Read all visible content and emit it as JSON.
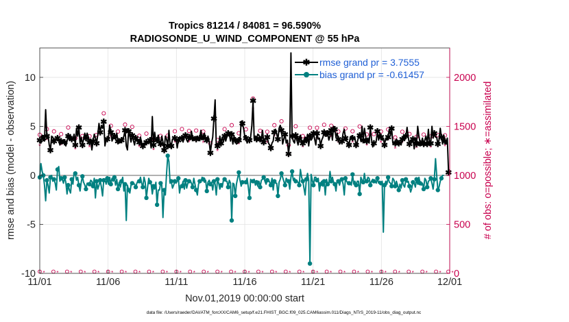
{
  "chart_data": {
    "type": "line",
    "title_line1": "Tropics 81214 / 84081 = 96.590%",
    "title_line2": "RADIOSONDE_U_WIND_COMPONENT @ 55 hPa",
    "xlabel": "Nov.01,2019 00:00:00 start",
    "ylabel_left": "rmse and bias (model - observation)",
    "ylabel_right": "# of obs: o=possible; ∗=assimilated",
    "footnote": "data file: /Users/raeder/DAI/ATM_forcXX/CAM6_setup/f.e21.FHIST_BGC.f09_025.CAM6assim.011/Diags_NTrS_2019-11/obs_diag_output.nc",
    "xlim": [
      0,
      30
    ],
    "ylim_left": [
      -10,
      13
    ],
    "ylim_right": [
      0,
      2300
    ],
    "x_tick_values": [
      0,
      5,
      10,
      15,
      20,
      25,
      30
    ],
    "x_tick_labels": [
      "11/01",
      "11/06",
      "11/11",
      "11/16",
      "11/21",
      "11/26",
      "12/01"
    ],
    "y_left_ticks": [
      -10,
      -5,
      0,
      5,
      10
    ],
    "y_right_ticks": [
      0,
      500,
      1000,
      1500,
      2000
    ],
    "legend": [
      {
        "name": "rmse grand pr = 3.7555",
        "color": "#000000",
        "marker": "star"
      },
      {
        "name": "bias grand pr = -0.61457",
        "color": "#008080",
        "marker": "circle"
      }
    ],
    "colors": {
      "rmse": "#000000",
      "bias": "#008080",
      "obs": "#c8004e",
      "legend_text": "#1f5fd6",
      "zero_line": "#b0b0b0",
      "grid": "#e3e3e3"
    },
    "rmse": [
      3.6,
      3.3,
      4.1,
      3.8,
      3.5,
      6.7,
      4.0,
      4.1,
      3.1,
      2.6,
      4.0,
      3.9,
      3.5,
      3.7,
      3.8,
      3.8,
      3.6,
      3.1,
      3.5,
      3.3,
      3.6,
      3.4,
      3.0,
      3.5,
      4.0,
      3.6,
      4.0,
      3.7,
      3.7,
      4.2,
      3.1,
      4.8,
      4.0,
      4.9,
      3.3,
      3.9,
      3.1,
      3.7,
      4.3,
      3.8,
      4.3,
      3.9,
      3.4,
      3.7,
      2.6,
      3.5,
      4.2,
      3.8,
      3.3,
      4.2,
      5.3,
      4.4,
      5.1,
      4.8,
      5.5,
      3.0,
      3.7,
      3.7,
      3.9,
      5.1,
      4.4,
      3.5,
      3.8,
      4.0,
      3.7,
      4.3,
      3.5,
      3.3,
      3.4,
      3.6,
      3.7,
      4.0,
      4.6,
      3.0,
      2.6,
      4.5,
      4.0,
      3.4,
      4.1,
      3.6,
      3.1,
      3.8,
      3.5,
      3.6,
      3.4,
      3.9,
      3.3,
      3.0,
      3.3,
      3.1,
      3.4,
      3.3,
      3.4,
      3.6,
      2.8,
      6.0,
      3.1,
      4.4,
      3.5,
      3.6,
      4.1,
      3.5,
      3.2,
      4.0,
      3.4,
      2.6,
      4.0,
      3.7,
      3.0,
      4.6,
      3.1,
      3.0,
      3.7,
      3.8,
      3.8,
      3.7,
      2.8,
      3.6,
      3.9,
      3.7,
      3.8,
      3.4,
      4.1,
      4.1,
      3.6,
      3.4,
      3.9,
      3.7,
      4.5,
      3.8,
      3.6,
      3.7,
      3.7,
      4.0,
      3.8,
      3.8,
      4.6,
      3.7,
      3.9,
      4.3,
      3.7,
      3.6,
      4.0,
      3.4,
      2.3,
      3.3,
      3.9,
      5.8,
      7.7,
      3.0,
      3.0,
      3.1,
      4.0,
      3.3,
      3.9,
      3.4,
      4.0,
      3.5,
      4.0,
      4.3,
      4.2,
      3.5,
      4.2,
      3.2,
      4.0,
      3.6,
      3.2,
      3.3,
      3.6,
      3.5,
      5.5,
      5.3,
      4.8,
      4.0,
      3.8,
      3.3,
      3.6,
      3.6,
      3.9,
      5.1,
      7.6,
      3.7,
      4.0,
      3.7,
      4.2,
      4.1,
      3.7,
      3.7,
      4.6,
      3.4,
      3.7,
      3.7,
      3.9,
      3.3,
      3.1,
      2.8,
      3.3,
      3.5,
      4.4,
      4.7,
      4.2,
      3.7,
      4.8,
      5.1,
      4.6,
      3.2,
      3.7,
      4.2,
      3.3,
      3.6,
      2.2,
      3.4,
      12.5,
      4.0,
      3.5,
      3.3,
      4.1,
      3.6,
      3.1,
      3.7,
      4.1,
      3.5,
      3.3,
      3.6,
      3.9,
      3.6,
      4.2,
      3.0,
      4.0,
      3.6,
      3.8,
      4.3,
      3.7,
      3.1,
      4.3,
      3.7,
      3.8,
      3.0,
      3.6,
      3.9,
      4.4,
      4.0,
      4.0,
      4.3,
      3.6,
      4.0,
      4.6,
      3.6,
      5.0,
      4.7,
      3.9,
      4.3,
      3.7,
      3.2,
      3.4,
      3.5,
      4.3,
      4.7,
      3.8,
      3.5,
      3.4,
      3.1,
      3.8,
      4.0,
      3.8,
      3.7,
      3.8,
      3.1,
      3.4,
      3.9,
      4.1,
      3.5,
      5.0,
      3.6,
      4.8,
      4.0,
      3.5,
      3.8,
      3.3,
      4.9,
      3.7,
      2.9,
      3.3,
      3.3,
      3.5,
      4.5,
      3.6,
      4.3,
      3.9,
      3.6,
      3.8,
      3.1,
      3.8,
      3.6,
      3.9,
      4.7,
      4.1,
      4.8,
      3.3,
      3.4,
      3.3,
      3.7,
      3.5,
      3.3,
      3.4,
      3.1,
      3.7,
      4.0,
      3.6,
      4.0,
      4.9,
      3.9,
      3.2,
      3.6,
      3.4,
      3.7,
      2.7,
      3.8,
      3.2,
      5.0,
      4.0,
      3.3,
      3.3,
      3.8,
      3.2,
      3.6,
      4.0,
      3.2,
      4.7,
      3.3,
      3.3,
      5.0,
      3.8,
      4.3,
      3.9,
      3.9,
      3.2,
      3.6,
      4.8,
      3.9,
      3.2,
      4.1,
      3.5,
      3.2,
      3.8,
      0.3,
      0.2
    ],
    "bias": [
      -0.2,
      1.2,
      0.4,
      0.0,
      -1.0,
      -2.6,
      -0.5,
      -1.0,
      -1.8,
      -0.2,
      0.0,
      -0.6,
      -0.4,
      -0.8,
      -1.5,
      0.6,
      0.9,
      -0.6,
      -0.3,
      -0.4,
      -0.8,
      -0.2,
      -0.7,
      -1.9,
      -1.0,
      -1.5,
      -1.8,
      -0.4,
      -0.9,
      0.3,
      0.2,
      -0.5,
      -0.2,
      -1.0,
      -1.6,
      -0.7,
      -0.1,
      -0.7,
      -1.0,
      -1.4,
      -0.8,
      -0.8,
      -0.9,
      -0.5,
      -0.6,
      -1.1,
      -0.3,
      -2.3,
      -0.6,
      -1.4,
      -1.0,
      -0.5,
      -1.2,
      -2.1,
      -0.5,
      -0.4,
      -0.9,
      -0.3,
      -0.9,
      -0.2,
      -0.9,
      -0.3,
      -0.6,
      -0.2,
      -1.0,
      -0.4,
      -1.4,
      -0.7,
      -1.2,
      -0.6,
      -0.2,
      -1.6,
      -0.9,
      -4.6,
      -1.0,
      -1.5,
      -1.8,
      -1.0,
      -0.8,
      -0.8,
      -0.9,
      -1.2,
      -0.8,
      -0.5,
      -0.6,
      -0.2,
      -0.8,
      -1.2,
      -0.2,
      -0.7,
      -2.3,
      -1.2,
      -0.3,
      -0.7,
      -0.9,
      -1.9,
      -1.1,
      -1.4,
      -0.7,
      -3.0,
      -1.5,
      -1.5,
      -0.8,
      -1.0,
      -4.3,
      -1.5,
      -2.0,
      0.1,
      2.0,
      1.4,
      -0.8,
      -0.6,
      -1.3,
      -1.0,
      -0.6,
      -0.8,
      -0.6,
      -0.3,
      -1.8,
      -1.0,
      -1.1,
      -0.6,
      -1.4,
      -0.5,
      -1.3,
      -0.8,
      -0.6,
      -0.5,
      -0.8,
      -1.2,
      -0.3,
      -0.9,
      -1.5,
      -2.0,
      -0.9,
      -0.6,
      -0.7,
      -0.2,
      -0.4,
      -0.7,
      -0.5,
      -1.6,
      -0.7,
      -0.5,
      -0.9,
      -0.7,
      -1.5,
      -0.6,
      -0.9,
      -2.0,
      -0.4,
      -0.8,
      -1.4,
      -1.0,
      -1.2,
      -0.5,
      -0.4,
      -0.6,
      -0.6,
      -1.2,
      -0.5,
      -0.8,
      -4.6,
      -0.8,
      -0.9,
      -2.1,
      -0.9,
      -0.3,
      0.3,
      -0.5,
      -1.1,
      -0.7,
      -0.8,
      -0.6,
      -0.7,
      -0.3,
      -1.2,
      -2.3,
      -0.4,
      -0.7,
      -0.6,
      -0.4,
      -1.0,
      -0.7,
      -1.1,
      -0.6,
      -1.2,
      -0.5,
      -0.4,
      -0.2,
      -0.6,
      -0.9,
      -0.5,
      -0.4,
      -0.7,
      -1.0,
      -0.3,
      -1.5,
      -0.6,
      -0.8,
      -0.8,
      -2.1,
      -0.7,
      -0.4,
      0.2,
      -0.2,
      -0.6,
      -1.0,
      -0.3,
      -0.5,
      -0.6,
      -1.4,
      -0.2,
      0.4,
      -0.5,
      -0.3,
      -0.6,
      -0.6,
      -0.7,
      -1.0,
      0.6,
      -0.2,
      -0.6,
      -1.3,
      -2.0,
      -0.4,
      0.2,
      -0.5,
      -9.0,
      0.1,
      -0.5,
      -1.0,
      -0.2,
      -0.2,
      -0.5,
      -0.3,
      -1.6,
      -0.9,
      -0.6,
      -1.1,
      -0.6,
      -2.0,
      -0.4,
      -0.9,
      -0.8,
      0.4,
      -0.6,
      -0.2,
      -0.7,
      -0.9,
      -1.6,
      -0.5,
      -0.6,
      -1.0,
      -0.5,
      -0.4,
      -0.9,
      -2.0,
      -0.3,
      -0.6,
      -0.8,
      -0.8,
      -0.8,
      -1.0,
      0.1,
      -0.9,
      -0.6,
      -1.0,
      -0.6,
      -0.6,
      -1.9,
      -0.2,
      -0.5,
      -0.7,
      0.2,
      -0.7,
      -0.6,
      -0.2,
      -0.3,
      -1.0,
      -0.6,
      -0.4,
      -0.6,
      -0.5,
      -0.8,
      -0.3,
      -0.8,
      -0.6,
      -0.8,
      -0.6,
      -5.8,
      -1.0,
      -0.6,
      -0.9,
      -0.2,
      -0.7,
      -0.8,
      -1.1,
      -0.3,
      -0.5,
      -1.1,
      -0.6,
      -1.0,
      -1.5,
      -0.9,
      -1.3,
      -0.5,
      -1.0,
      -1.2,
      -0.4,
      -0.7,
      -0.6,
      -1.1,
      -1.7,
      -1.3,
      -0.7,
      -0.8,
      -1.2,
      -0.4,
      -0.9,
      -0.2,
      -0.8,
      -1.0,
      -0.8,
      -1.4,
      -0.3,
      -0.5,
      -1.2,
      -0.6,
      -0.5,
      -0.3,
      -0.8,
      -1.4,
      -0.4,
      1.7,
      0.0,
      -1.5,
      -1.2,
      -0.6,
      -0.3,
      0.0,
      0.0
    ]
  }
}
